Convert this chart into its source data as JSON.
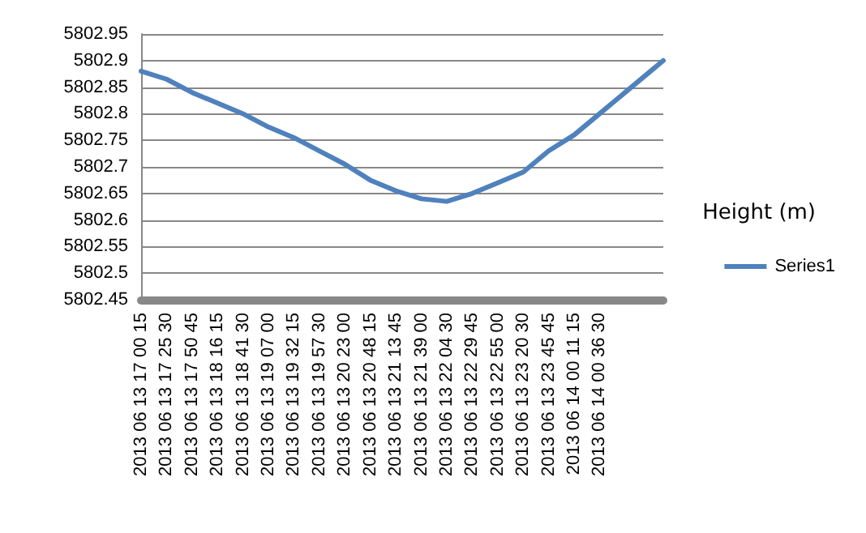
{
  "chart_data": {
    "type": "line",
    "title": "Height (m)",
    "categories": [
      "2013 06 13 17 00 15",
      null,
      "2013 06 13 17 25 30",
      null,
      "2013 06 13 17 50 45",
      null,
      "2013 06 13 18 16 15",
      null,
      "2013 06 13 18 41 30",
      null,
      "2013 06 13 19 07 00",
      null,
      "2013 06 13 19 32 15",
      null,
      "2013 06 13 19 57 30",
      null,
      "2013 06 13 20 23 00",
      null,
      "2013 06 13 20 48 15",
      null,
      "2013 06 13 21 13 45",
      null,
      "2013 06 13 21 39 00",
      null,
      "2013 06 13 22 04 30",
      null,
      "2013 06 13 22 29 45",
      null,
      "2013 06 13 22 55 00",
      null,
      "2013 06 13 23 20 30",
      null,
      "2013 06 13 23 45 45",
      null,
      "2013 06 14 00 11 15",
      null,
      "2013 06 14 00 36 30",
      null,
      null,
      null,
      null,
      null
    ],
    "series": [
      {
        "name": "Series1",
        "color": "#4f81bd",
        "values": [
          5802.88,
          null,
          5802.865,
          null,
          5802.84,
          null,
          5802.82,
          null,
          5802.8,
          null,
          5802.775,
          null,
          5802.755,
          null,
          5802.73,
          null,
          5802.705,
          null,
          5802.675,
          null,
          5802.655,
          null,
          5802.64,
          null,
          5802.635,
          null,
          5802.65,
          null,
          5802.67,
          null,
          5802.69,
          null,
          5802.73,
          null,
          5802.76,
          null,
          5802.8,
          null,
          5802.84,
          null,
          5802.88,
          5802.9
        ]
      }
    ],
    "ylim": [
      5802.45,
      5802.95
    ],
    "yticks": [
      5802.45,
      5802.5,
      5802.55,
      5802.6,
      5802.65,
      5802.7,
      5802.75,
      5802.8,
      5802.85,
      5802.9,
      5802.95
    ],
    "grid": "y",
    "legend": "right",
    "marker": "none",
    "line_style": "solid"
  }
}
